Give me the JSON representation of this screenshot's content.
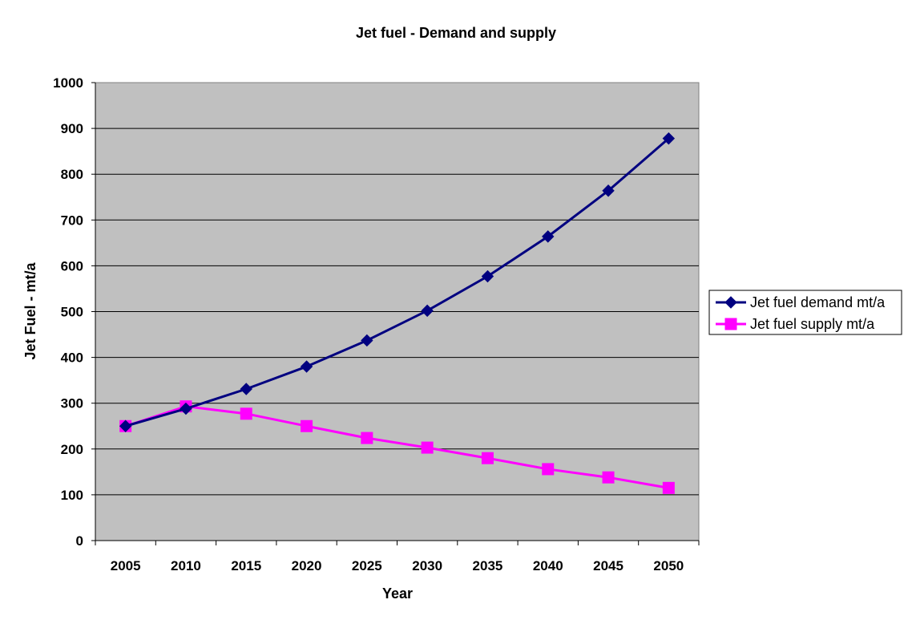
{
  "chart_data": {
    "type": "line",
    "title": "Jet fuel - Demand and supply",
    "xlabel": "Year",
    "ylabel": "Jet Fuel - mt/a",
    "categories": [
      "2005",
      "2010",
      "2015",
      "2020",
      "2025",
      "2030",
      "2035",
      "2040",
      "2045",
      "2050"
    ],
    "ylim": [
      0,
      1000
    ],
    "yticks": [
      "0",
      "100",
      "200",
      "300",
      "400",
      "500",
      "600",
      "700",
      "800",
      "900",
      "1000"
    ],
    "grid": true,
    "legend_position": "right",
    "plot_background": "#c0c0c0",
    "series": [
      {
        "name": "Jet fuel demand mt/a",
        "color": "#000080",
        "marker": "diamond",
        "values": [
          250,
          288,
          331,
          380,
          437,
          502,
          577,
          664,
          764,
          878
        ]
      },
      {
        "name": "Jet fuel supply mt/a",
        "color": "#ff00ff",
        "marker": "square",
        "values": [
          250,
          293,
          277,
          250,
          224,
          203,
          180,
          156,
          138,
          115
        ]
      }
    ]
  }
}
